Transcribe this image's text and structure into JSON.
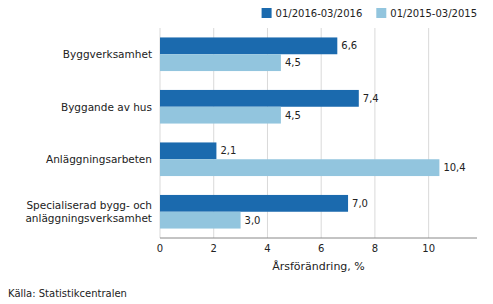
{
  "chart_data": {
    "type": "bar",
    "orientation": "horizontal",
    "categories": [
      "Byggverksamhet",
      "Byggande av hus",
      "Anläggningsarbeten",
      "Specialiserad bygg- och\nanläggningsverksamhet"
    ],
    "series": [
      {
        "name": "01/2016-03/2016",
        "color": "#1b6aae",
        "values": [
          6.6,
          7.4,
          2.1,
          7.0
        ],
        "value_labels": [
          "6,6",
          "7,4",
          "2,1",
          "7,0"
        ]
      },
      {
        "name": "01/2015-03/2015",
        "color": "#92c5de",
        "values": [
          4.5,
          4.5,
          10.4,
          3.0
        ],
        "value_labels": [
          "4,5",
          "4,5",
          "10,4",
          "3,0"
        ]
      }
    ],
    "xlabel": "Årsförändring, %",
    "xlim": [
      0,
      11.8
    ],
    "xticks": [
      0,
      2,
      4,
      6,
      8,
      10
    ],
    "grid": true,
    "legend": "upper right",
    "data_labels": true,
    "footnote": "Källa: Statistikcentralen"
  }
}
